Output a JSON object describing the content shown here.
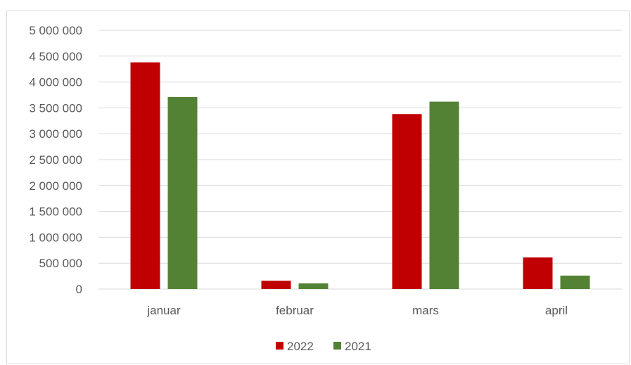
{
  "chart_data": {
    "type": "bar",
    "title": "",
    "xlabel": "",
    "ylabel": "",
    "categories": [
      "januar",
      "februar",
      "mars",
      "april"
    ],
    "series": [
      {
        "name": "2022",
        "color": "#c00000",
        "values": [
          4380000,
          160000,
          3380000,
          610000
        ]
      },
      {
        "name": "2021",
        "color": "#548235",
        "values": [
          3710000,
          110000,
          3620000,
          260000
        ]
      }
    ],
    "ylim": [
      0,
      5000000
    ],
    "yticks": [
      {
        "value": 0,
        "label": "0"
      },
      {
        "value": 500000,
        "label": "500 000"
      },
      {
        "value": 1000000,
        "label": "1 000 000"
      },
      {
        "value": 1500000,
        "label": "1 500 000"
      },
      {
        "value": 2000000,
        "label": "2 000 000"
      },
      {
        "value": 2500000,
        "label": "2 500 000"
      },
      {
        "value": 3000000,
        "label": "3 000 000"
      },
      {
        "value": 3500000,
        "label": "3 500 000"
      },
      {
        "value": 4000000,
        "label": "4 000 000"
      },
      {
        "value": 4500000,
        "label": "4 500 000"
      },
      {
        "value": 5000000,
        "label": "5 000 000"
      }
    ],
    "grid": true,
    "gridline_color": "#d9d9d9",
    "axis_label_color": "#595959",
    "legend_position": "bottom-center"
  }
}
